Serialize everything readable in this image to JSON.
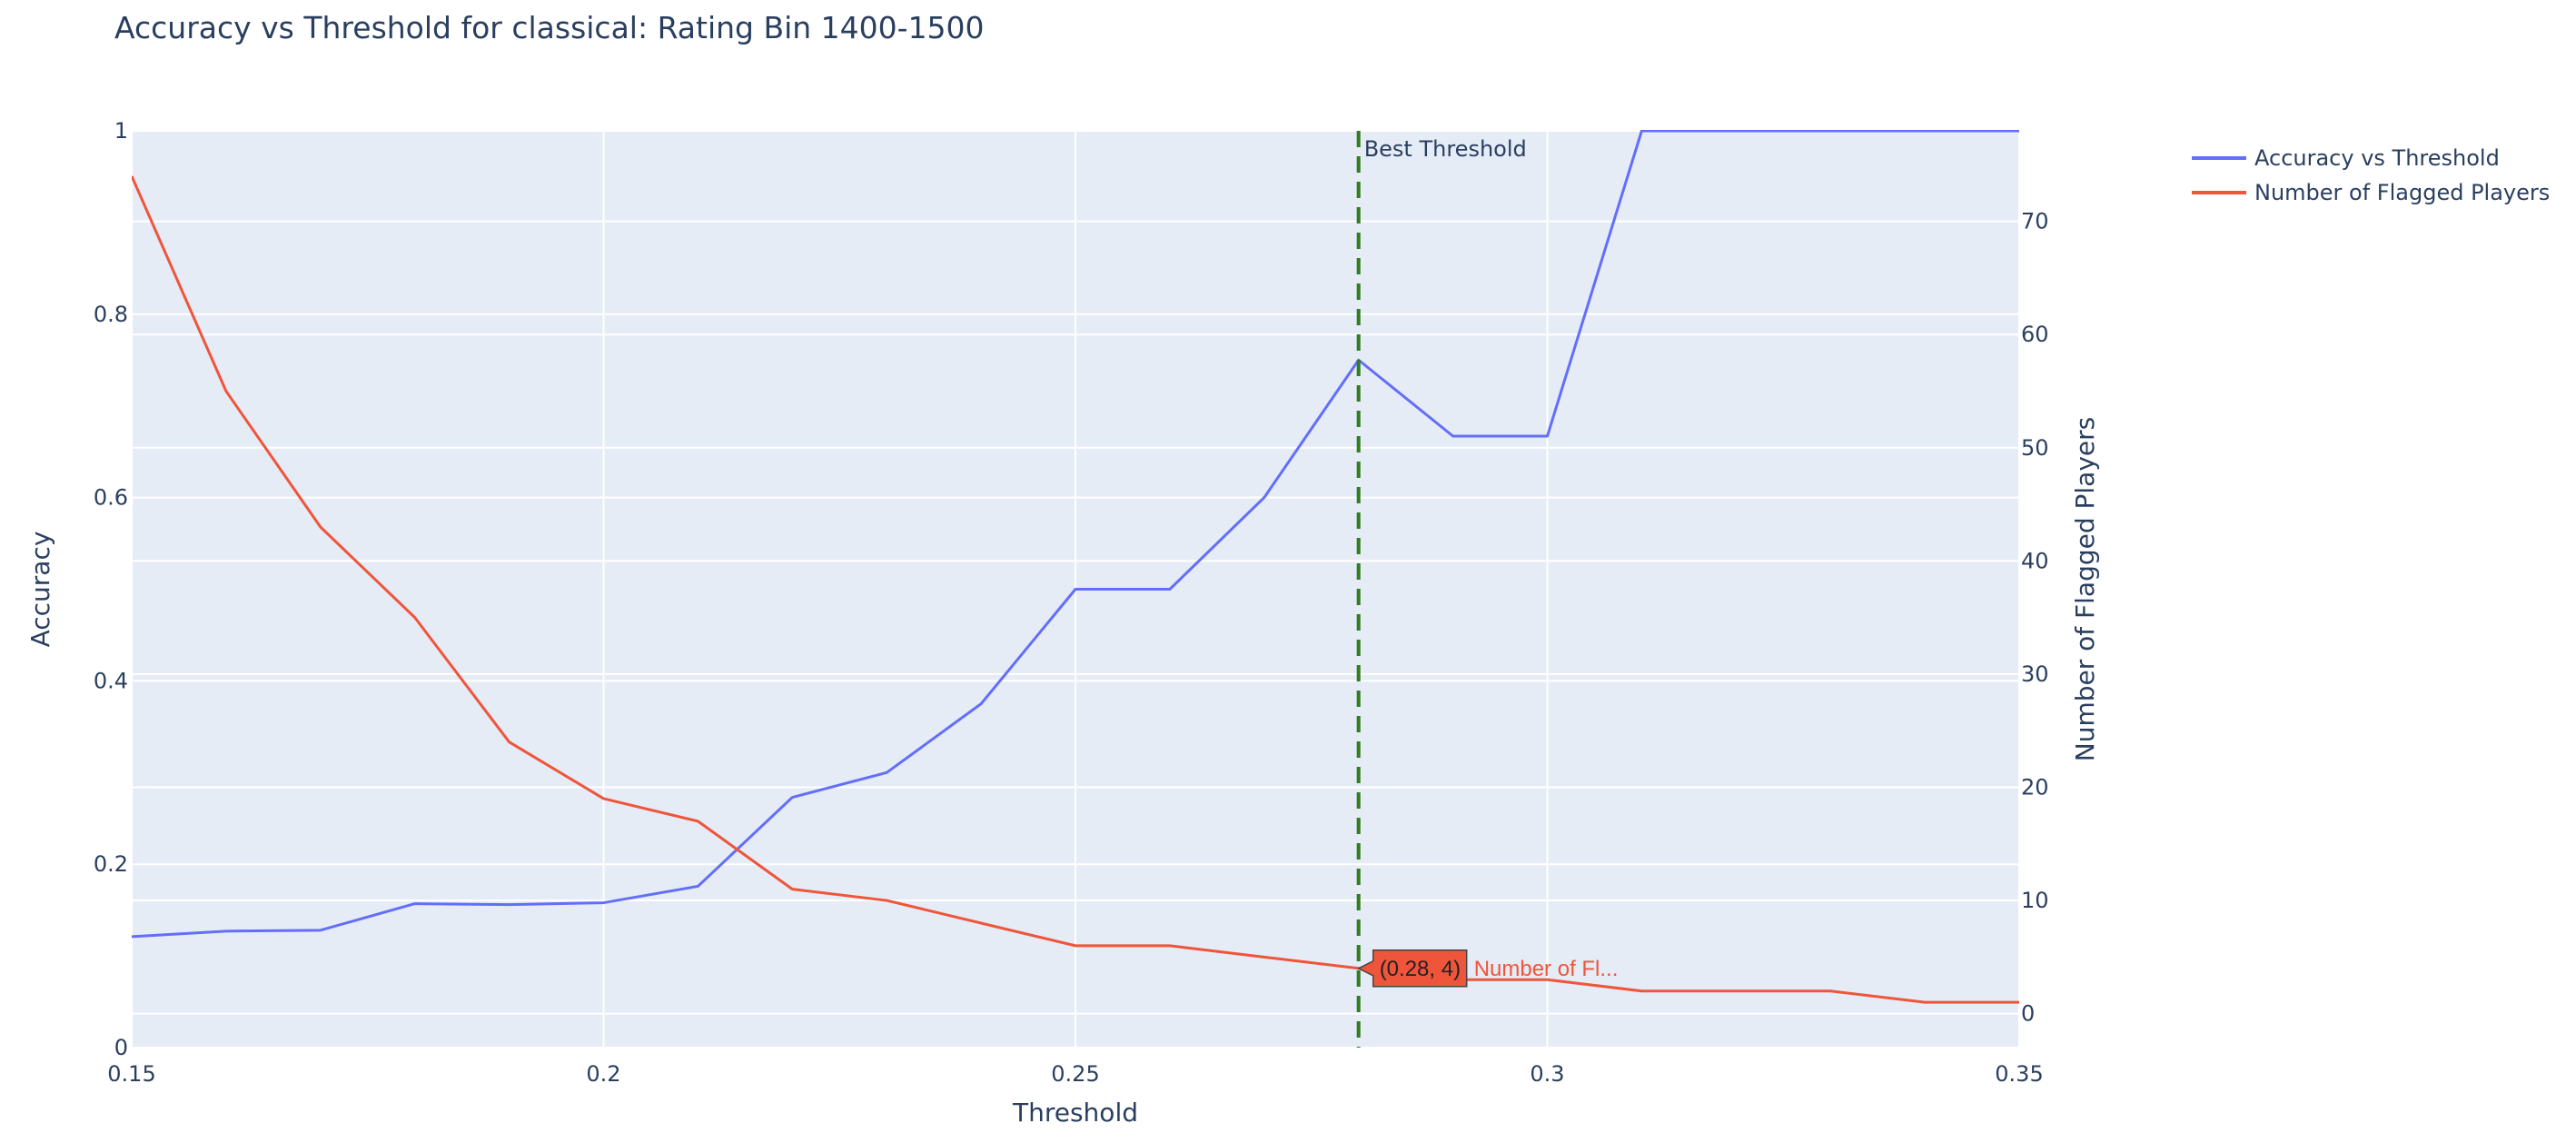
{
  "chart_data": {
    "type": "line",
    "title": "Accuracy vs Threshold for classical: Rating Bin 1400-1500",
    "xlabel": "Threshold",
    "ylabel": "Accuracy",
    "y2label": "Number of Flagged Players",
    "xlim": [
      0.15,
      0.35
    ],
    "ylim": [
      0,
      1
    ],
    "y2lim": [
      -3,
      78
    ],
    "x_ticks": [
      0.15,
      0.2,
      0.25,
      0.3,
      0.35
    ],
    "x_tick_labels": [
      "0.15",
      "0.2",
      "0.25",
      "0.3",
      "0.35"
    ],
    "y_ticks": [
      0,
      0.2,
      0.4,
      0.6,
      0.8,
      1
    ],
    "y_tick_labels": [
      "0",
      "0.2",
      "0.4",
      "0.6",
      "0.8",
      "1"
    ],
    "y2_ticks": [
      0,
      10,
      20,
      30,
      40,
      50,
      60,
      70
    ],
    "y2_tick_labels": [
      "0",
      "10",
      "20",
      "30",
      "40",
      "50",
      "60",
      "70"
    ],
    "grid": true,
    "legend_position": "top-right, outside plot",
    "x": [
      0.15,
      0.16,
      0.17,
      0.18,
      0.19,
      0.2,
      0.21,
      0.22,
      0.23,
      0.24,
      0.25,
      0.26,
      0.27,
      0.28,
      0.29,
      0.3,
      0.31,
      0.32,
      0.33,
      0.34,
      0.35
    ],
    "series": [
      {
        "name": "Accuracy vs Threshold",
        "axis": "y",
        "color": "#636efa",
        "values": [
          0.121,
          0.127,
          0.128,
          0.157,
          0.156,
          0.158,
          0.176,
          0.273,
          0.3,
          0.375,
          0.5,
          0.5,
          0.6,
          0.75,
          0.667,
          0.667,
          1.0,
          1.0,
          1.0,
          1.0,
          1.0
        ]
      },
      {
        "name": "Number of Flagged Players",
        "axis": "y2",
        "color": "#ef553b",
        "values": [
          74,
          55,
          43,
          35,
          24,
          19,
          17,
          11,
          10,
          8,
          6,
          6,
          5,
          4,
          3,
          3,
          2,
          2,
          2,
          1,
          1
        ]
      }
    ],
    "vline": {
      "x": 0.28,
      "color": "#2f7d1f",
      "style": "dashed",
      "label": "Best Threshold"
    },
    "hover": {
      "series_index": 1,
      "point_index": 13,
      "text": "(0.28, 4)",
      "series_label": "Number of Fl..."
    }
  }
}
